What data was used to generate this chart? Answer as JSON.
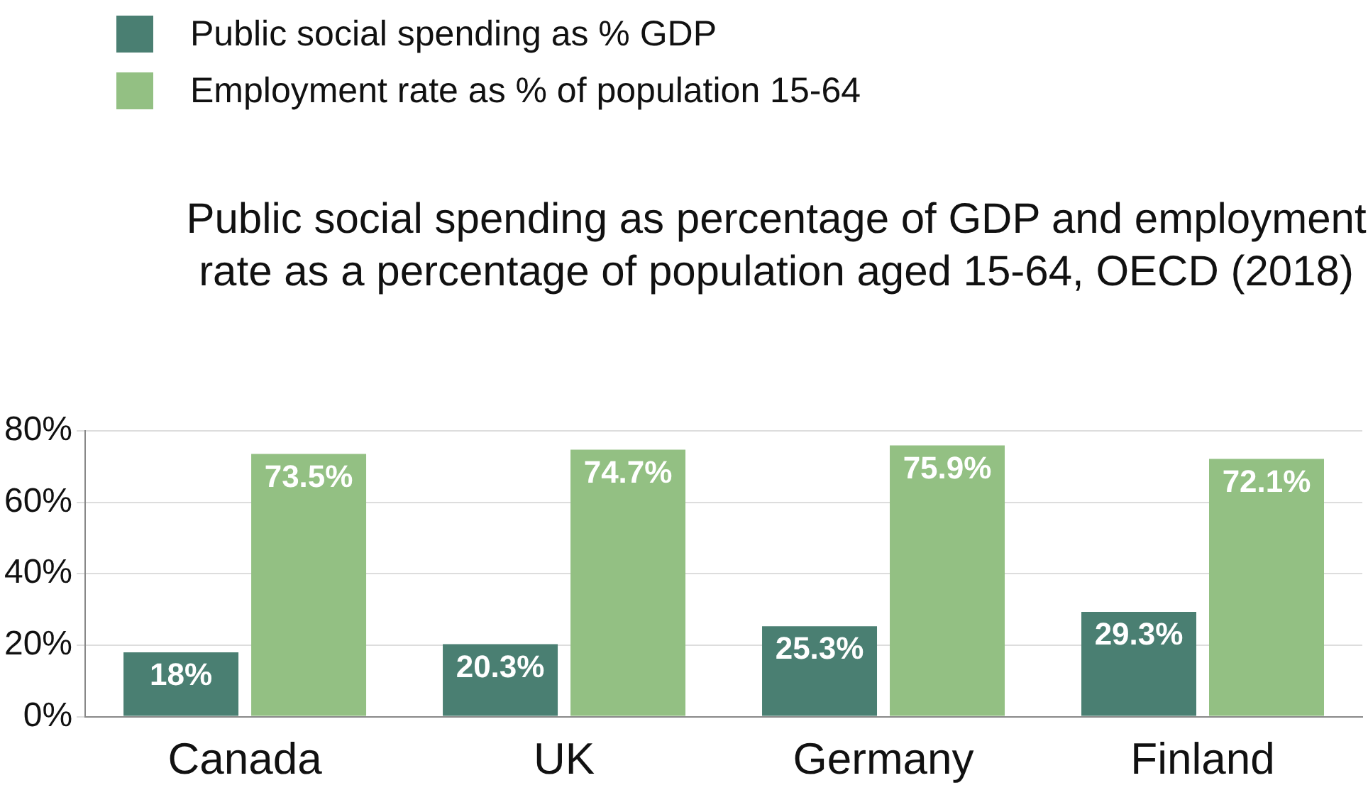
{
  "chart_data": {
    "type": "bar",
    "title": "Public social spending as percentage of GDP and employment rate as a percentage of population aged 15-64, OECD (2018)",
    "categories": [
      "Canada",
      "UK",
      "Germany",
      "Finland"
    ],
    "series": [
      {
        "name": "Public social spending as  % GDP",
        "color": "#4a7f72",
        "values": [
          18,
          20.3,
          25.3,
          29.3
        ],
        "value_labels": [
          "18%",
          "20.3%",
          "25.3%",
          "29.3%"
        ]
      },
      {
        "name": "Employment rate as % of population 15-64",
        "color": "#93c083",
        "values": [
          73.5,
          74.7,
          75.9,
          72.1
        ],
        "value_labels": [
          "73.5%",
          "74.7%",
          "75.9%",
          "72.1%"
        ]
      }
    ],
    "ylim": [
      0,
      80
    ],
    "yticks": [
      {
        "value": 0,
        "label": "0%"
      },
      {
        "value": 20,
        "label": "20%"
      },
      {
        "value": 40,
        "label": "40%"
      },
      {
        "value": 60,
        "label": "60%"
      },
      {
        "value": 80,
        "label": "80%"
      }
    ],
    "grid": "y",
    "legend": "top left"
  }
}
